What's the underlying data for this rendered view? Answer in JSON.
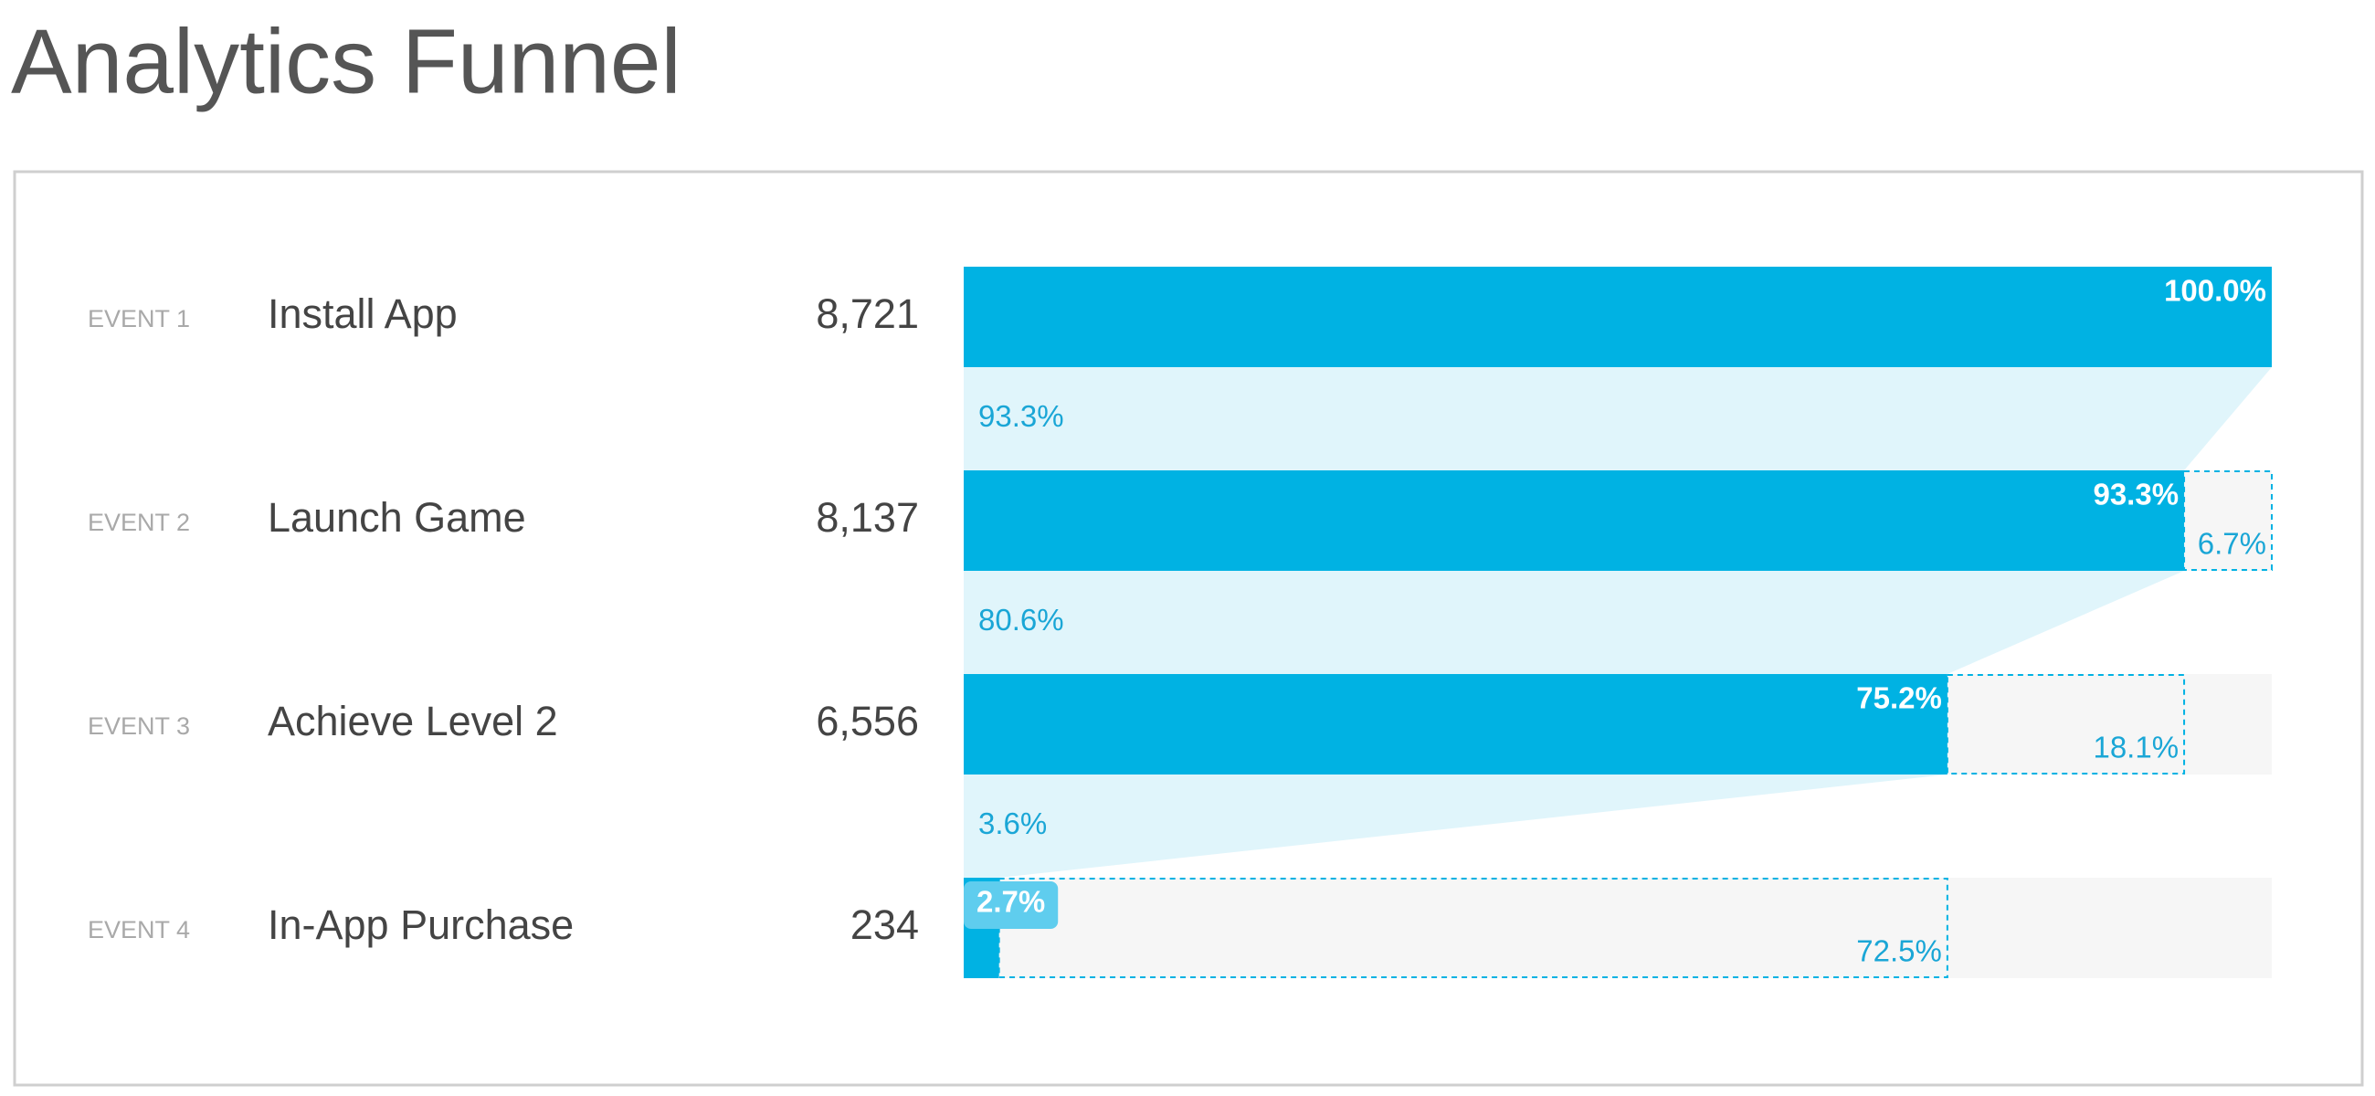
{
  "chart_data": {
    "type": "funnel",
    "title": "Analytics Funnel",
    "step_labels": [
      "EVENT 1",
      "EVENT 2",
      "EVENT 3",
      "EVENT 4"
    ],
    "categories": [
      "Install App",
      "Launch Game",
      "Achieve Level 2",
      "In-App Purchase"
    ],
    "values": [
      8721,
      8137,
      6556,
      234
    ],
    "value_labels": [
      "8,721",
      "8,137",
      "6,556",
      "234"
    ],
    "share": [
      100.0,
      93.3,
      75.2,
      2.7
    ],
    "share_labels": [
      "100.0%",
      "93.3%",
      "75.2%",
      "2.7%"
    ],
    "conversion": [
      93.3,
      80.6,
      3.6
    ],
    "conversion_labels": [
      "93.3%",
      "80.6%",
      "3.6%"
    ],
    "dropoff": [
      6.7,
      18.1,
      72.5
    ],
    "dropoff_labels": [
      "6.7%",
      "18.1%",
      "72.5%"
    ],
    "color": "#00b2e3"
  }
}
